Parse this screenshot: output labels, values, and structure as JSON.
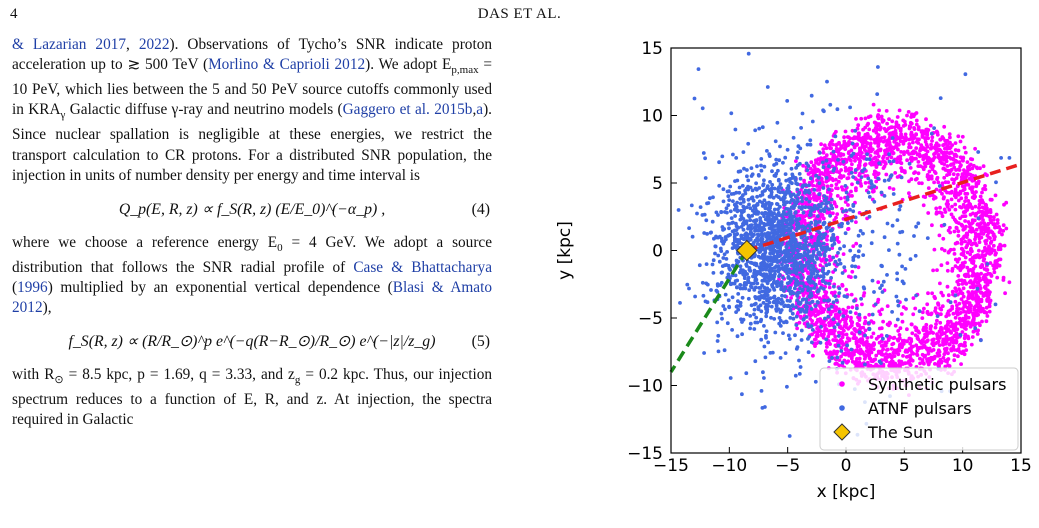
{
  "header": {
    "page_number": "4",
    "running_head": "DAS ET AL."
  },
  "text": {
    "p1": [
      {
        "t": "& Lazarian 2017",
        "c": 1
      },
      {
        "t": ", ",
        "c": 0
      },
      {
        "t": "2022",
        "c": 1
      },
      {
        "t": "). Observations of Tycho’s SNR indicate proton acceleration up to ≳ 500 TeV (",
        "c": 0
      },
      {
        "t": "Morlino & Caprioli 2012",
        "c": 1
      },
      {
        "t": "). We adopt E",
        "c": 0
      },
      {
        "t": "p,max",
        "c": 2
      },
      {
        "t": " = 10 PeV, which lies between the 5 and 50 PeV source cutoffs commonly used in KRA",
        "c": 0
      },
      {
        "t": "γ",
        "c": 2
      },
      {
        "t": " Galactic diffuse γ-ray and neutrino models (",
        "c": 0
      },
      {
        "t": "Gaggero et al. 2015b",
        "c": 1
      },
      {
        "t": ",",
        "c": 0
      },
      {
        "t": "a",
        "c": 1
      },
      {
        "t": "). Since nuclear spallation is negligible at these energies, we restrict the transport calculation to CR protons. For a distributed SNR population, the injection in units of number density per energy and time interval is",
        "c": 0
      }
    ],
    "eq4": "Q_p(E, R, z) ∝ f_S(R, z) (E/E_0)^(−α_p) ,",
    "eq4_label": "(4)",
    "p2": [
      {
        "t": "where we choose a reference energy E",
        "c": 0
      },
      {
        "t": "0",
        "c": 2
      },
      {
        "t": " = 4 GeV. We adopt a source distribution that follows the SNR radial profile of ",
        "c": 0
      },
      {
        "t": "Case & Bhattacharya",
        "c": 1
      },
      {
        "t": " (",
        "c": 0
      },
      {
        "t": "1996",
        "c": 1
      },
      {
        "t": ") multiplied by an exponential vertical dependence (",
        "c": 0
      },
      {
        "t": "Blasi & Amato 2012",
        "c": 1
      },
      {
        "t": "),",
        "c": 0
      }
    ],
    "eq5": "f_S(R, z) ∝ (R/R_⊙)^p e^(−q(R−R_⊙)/R_⊙) e^(−|z|/z_g)",
    "eq5_label": "(5)",
    "p3": [
      {
        "t": "with R",
        "c": 0
      },
      {
        "t": "⊙",
        "c": 2
      },
      {
        "t": " = 8.5 kpc, p = 1.69, q = 3.33, and z",
        "c": 0
      },
      {
        "t": "g",
        "c": 2
      },
      {
        "t": " = 0.2 kpc. Thus, our injection spectrum reduces to a function of E, R, and z. At injection, the spectra required in Galactic",
        "c": 0
      }
    ]
  },
  "chart_data": {
    "type": "scatter",
    "xlabel": "x [kpc]",
    "ylabel": "y [kpc]",
    "xlim": [
      -15,
      15
    ],
    "ylim": [
      -15,
      15
    ],
    "xticks": [
      "−15",
      "−10",
      "−5",
      "0",
      "5",
      "10",
      "15"
    ],
    "yticks": [
      "−15",
      "−10",
      "−5",
      "0",
      "5",
      "10",
      "15"
    ],
    "legend_position": "bottom-right",
    "series": [
      {
        "name": "Synthetic pulsars",
        "color": "#ff00ff",
        "approx_count": 3000
      },
      {
        "name": "ATNF pulsars",
        "color": "#4169e1",
        "approx_count": 1800
      }
    ],
    "sun": {
      "name": "The Sun",
      "x": -8.5,
      "y": 0,
      "color": "#f5c400"
    },
    "lines": [
      {
        "style": "dashed",
        "color": "#e8201e",
        "x": [
          -8.5,
          15
        ],
        "y": [
          0,
          6.4
        ]
      },
      {
        "style": "dashed",
        "color": "#1a8a1a",
        "x": [
          -8.5,
          -15
        ],
        "y": [
          0,
          -9
        ]
      }
    ]
  }
}
